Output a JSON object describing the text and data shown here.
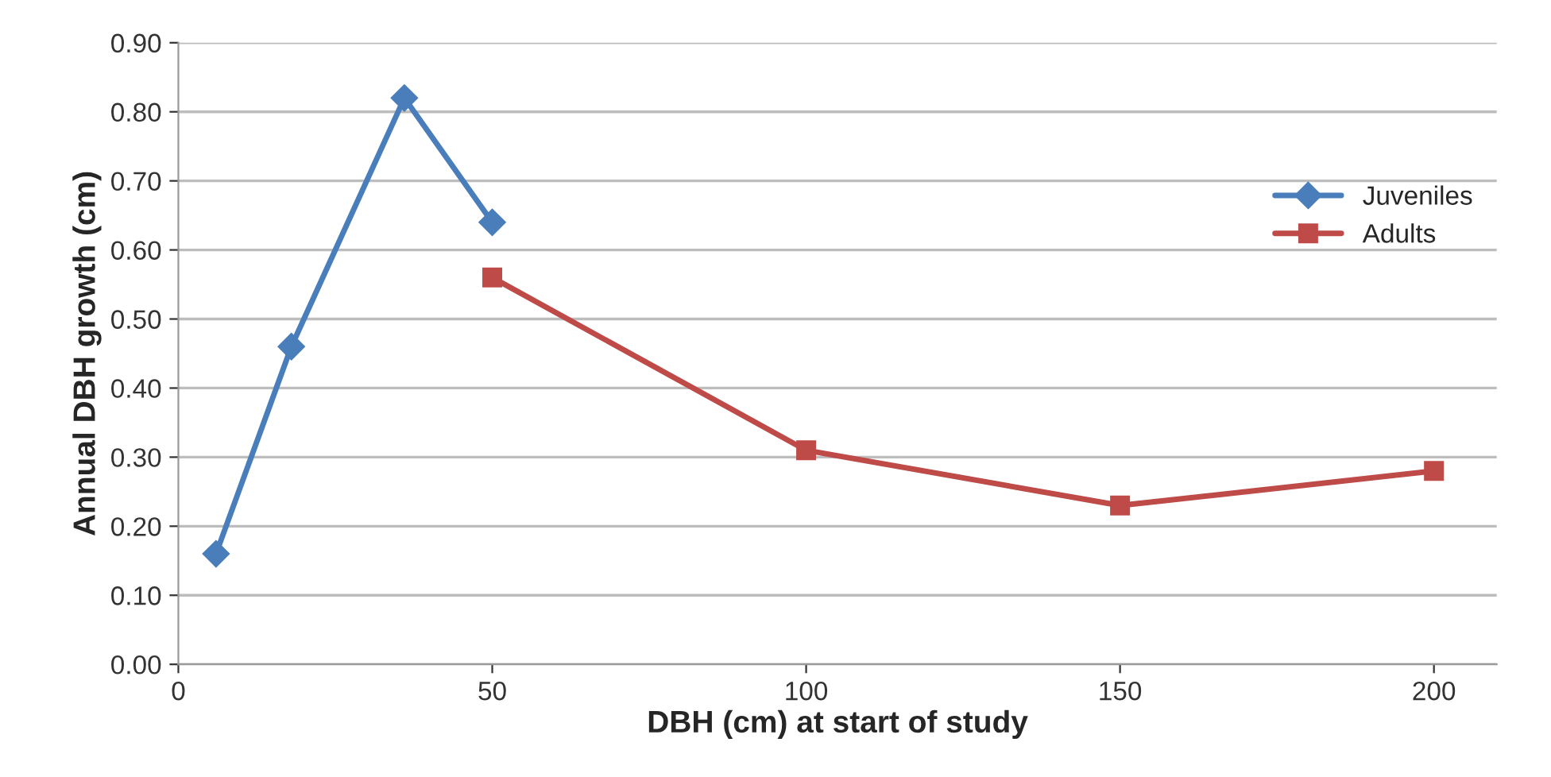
{
  "chart_data": {
    "type": "line",
    "xlabel": "DBH (cm) at start of study",
    "ylabel": "Annual DBH growth (cm)",
    "series": [
      {
        "name": "Juveniles",
        "color": "#4a7ebb",
        "marker": "diamond",
        "x": [
          6,
          18,
          36,
          50
        ],
        "values": [
          0.16,
          0.46,
          0.82,
          0.64
        ]
      },
      {
        "name": "Adults",
        "color": "#be4b48",
        "marker": "square",
        "x": [
          50,
          100,
          150,
          200
        ],
        "values": [
          0.56,
          0.31,
          0.23,
          0.28
        ]
      }
    ],
    "xlim": [
      0,
      210
    ],
    "xticks": [
      0,
      50,
      100,
      150,
      200
    ],
    "ylim": [
      0,
      0.9
    ],
    "yticks": [
      {
        "value": 0,
        "label": "0.00"
      },
      {
        "value": 0.1,
        "label": "0.10"
      },
      {
        "value": 0.2,
        "label": "0.20"
      },
      {
        "value": 0.3,
        "label": "0.30"
      },
      {
        "value": 0.4,
        "label": "0.40"
      },
      {
        "value": 0.5,
        "label": "0.50"
      },
      {
        "value": 0.6,
        "label": "0.60"
      },
      {
        "value": 0.7,
        "label": "0.70"
      },
      {
        "value": 0.8,
        "label": "0.80"
      },
      {
        "value": 0.9,
        "label": "0.90"
      }
    ],
    "grid": "y",
    "legend": "right",
    "line_style": "solid"
  }
}
